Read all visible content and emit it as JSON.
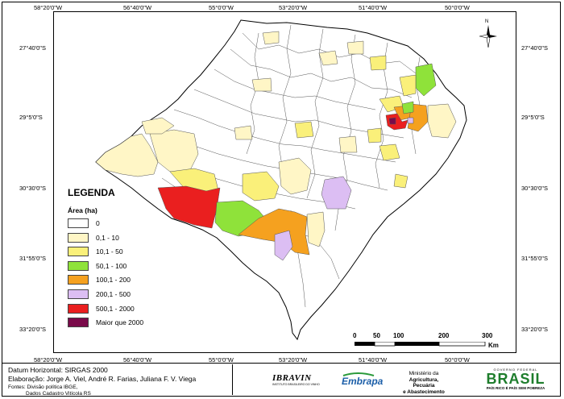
{
  "coordinates": {
    "top": [
      "58°20'0\"W",
      "56°40'0\"W",
      "55°0'0\"W",
      "53°20'0\"W",
      "51°40'0\"W",
      "50°0'0\"W"
    ],
    "bottom": [
      "58°20'0\"W",
      "56°40'0\"W",
      "55°0'0\"W",
      "53°20'0\"W",
      "51°40'0\"W",
      "50°0'0\"W"
    ],
    "left": [
      "27°40'0\"S",
      "29°5'0\"S",
      "30°30'0\"S",
      "31°55'0\"S",
      "33°20'0\"S"
    ],
    "right": [
      "27°40'0\"S",
      "29°5'0\"S",
      "30°30'0\"S",
      "31°55'0\"S",
      "33°20'0\"S"
    ]
  },
  "north_arrow": {
    "label": "N"
  },
  "legend": {
    "title": "LEGENDA",
    "subtitle": "Área (ha)",
    "items": [
      {
        "label": "0",
        "color": "#ffffff"
      },
      {
        "label": "0,1 - 10",
        "color": "#fff6c6"
      },
      {
        "label": "10,1 - 50",
        "color": "#faf07a"
      },
      {
        "label": "50,1 - 100",
        "color": "#8fe23a"
      },
      {
        "label": "100,1 - 200",
        "color": "#f5a11f"
      },
      {
        "label": "200,1 - 500",
        "color": "#dcbef3"
      },
      {
        "label": "500,1 - 2000",
        "color": "#ea1f1f"
      },
      {
        "label": "Maior que 2000",
        "color": "#7a0a4a"
      }
    ]
  },
  "scale": {
    "labels": [
      "0",
      "50",
      "100",
      "200",
      "300"
    ],
    "unit": "Km"
  },
  "footer": {
    "datum": "Datum Horizontal: SIRGAS 2000",
    "elaboration": "Elaboração: Jorge A. Viel, André R. Farias, Juliana F. V. Viega",
    "sources_line1": "Fontes: Divisão política IBGE,",
    "sources_line2": "Dados Cadastro Vitícola RS",
    "ibravin": "IBRAVIN",
    "ibravin_sub": "INSTITUTO BRASILEIRO DO VINHO",
    "embrapa": "Embrapa",
    "ministry": [
      "Ministério da",
      "Agricultura, Pecuária",
      "e Abastecimento"
    ],
    "gov_top": "GOVERNO FEDERAL",
    "brasil": "BRASIL",
    "gov_slogan": "PAÍS RICO É PAÍS SEM POBREZA"
  }
}
